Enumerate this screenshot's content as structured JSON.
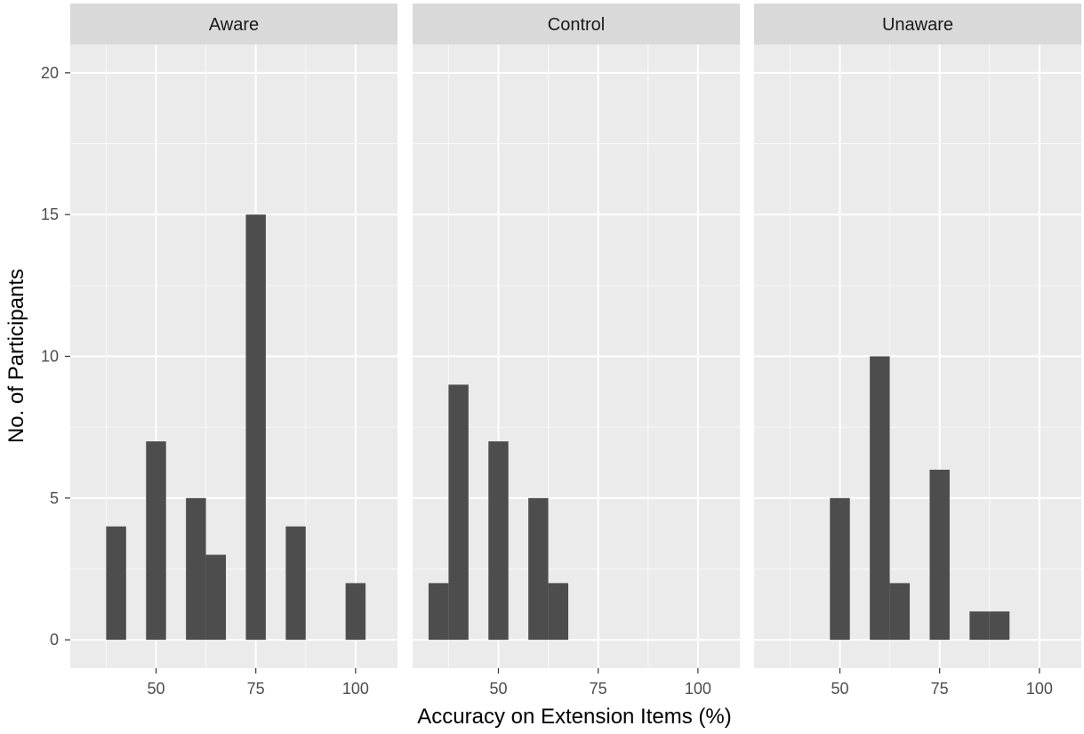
{
  "chart_data": {
    "type": "bar",
    "subtype": "faceted-histogram",
    "xlabel": "Accuracy on Extension Items (%)",
    "ylabel": "No. of Participants",
    "xlim": [
      28.5,
      110.5
    ],
    "ylim": [
      -1,
      21
    ],
    "x_ticks": [
      50,
      75,
      100
    ],
    "y_ticks": [
      0,
      5,
      10,
      15,
      20
    ],
    "bin_width": 5,
    "grid": true,
    "colors": {
      "bar": "#4d4d4d",
      "panel": "#ebebeb",
      "strip": "#d9d9d9",
      "grid": "#ffffff"
    },
    "facets": [
      {
        "label": "Aware",
        "bins": [
          {
            "x": 40,
            "count": 4
          },
          {
            "x": 50,
            "count": 7
          },
          {
            "x": 60,
            "count": 5
          },
          {
            "x": 65,
            "count": 3
          },
          {
            "x": 75,
            "count": 15
          },
          {
            "x": 85,
            "count": 4
          },
          {
            "x": 100,
            "count": 2
          }
        ]
      },
      {
        "label": "Control",
        "bins": [
          {
            "x": 35,
            "count": 2
          },
          {
            "x": 40,
            "count": 9
          },
          {
            "x": 50,
            "count": 7
          },
          {
            "x": 60,
            "count": 5
          },
          {
            "x": 65,
            "count": 2
          }
        ]
      },
      {
        "label": "Unaware",
        "bins": [
          {
            "x": 50,
            "count": 5
          },
          {
            "x": 60,
            "count": 10
          },
          {
            "x": 65,
            "count": 2
          },
          {
            "x": 75,
            "count": 6
          },
          {
            "x": 85,
            "count": 1
          },
          {
            "x": 90,
            "count": 1
          }
        ]
      }
    ]
  }
}
